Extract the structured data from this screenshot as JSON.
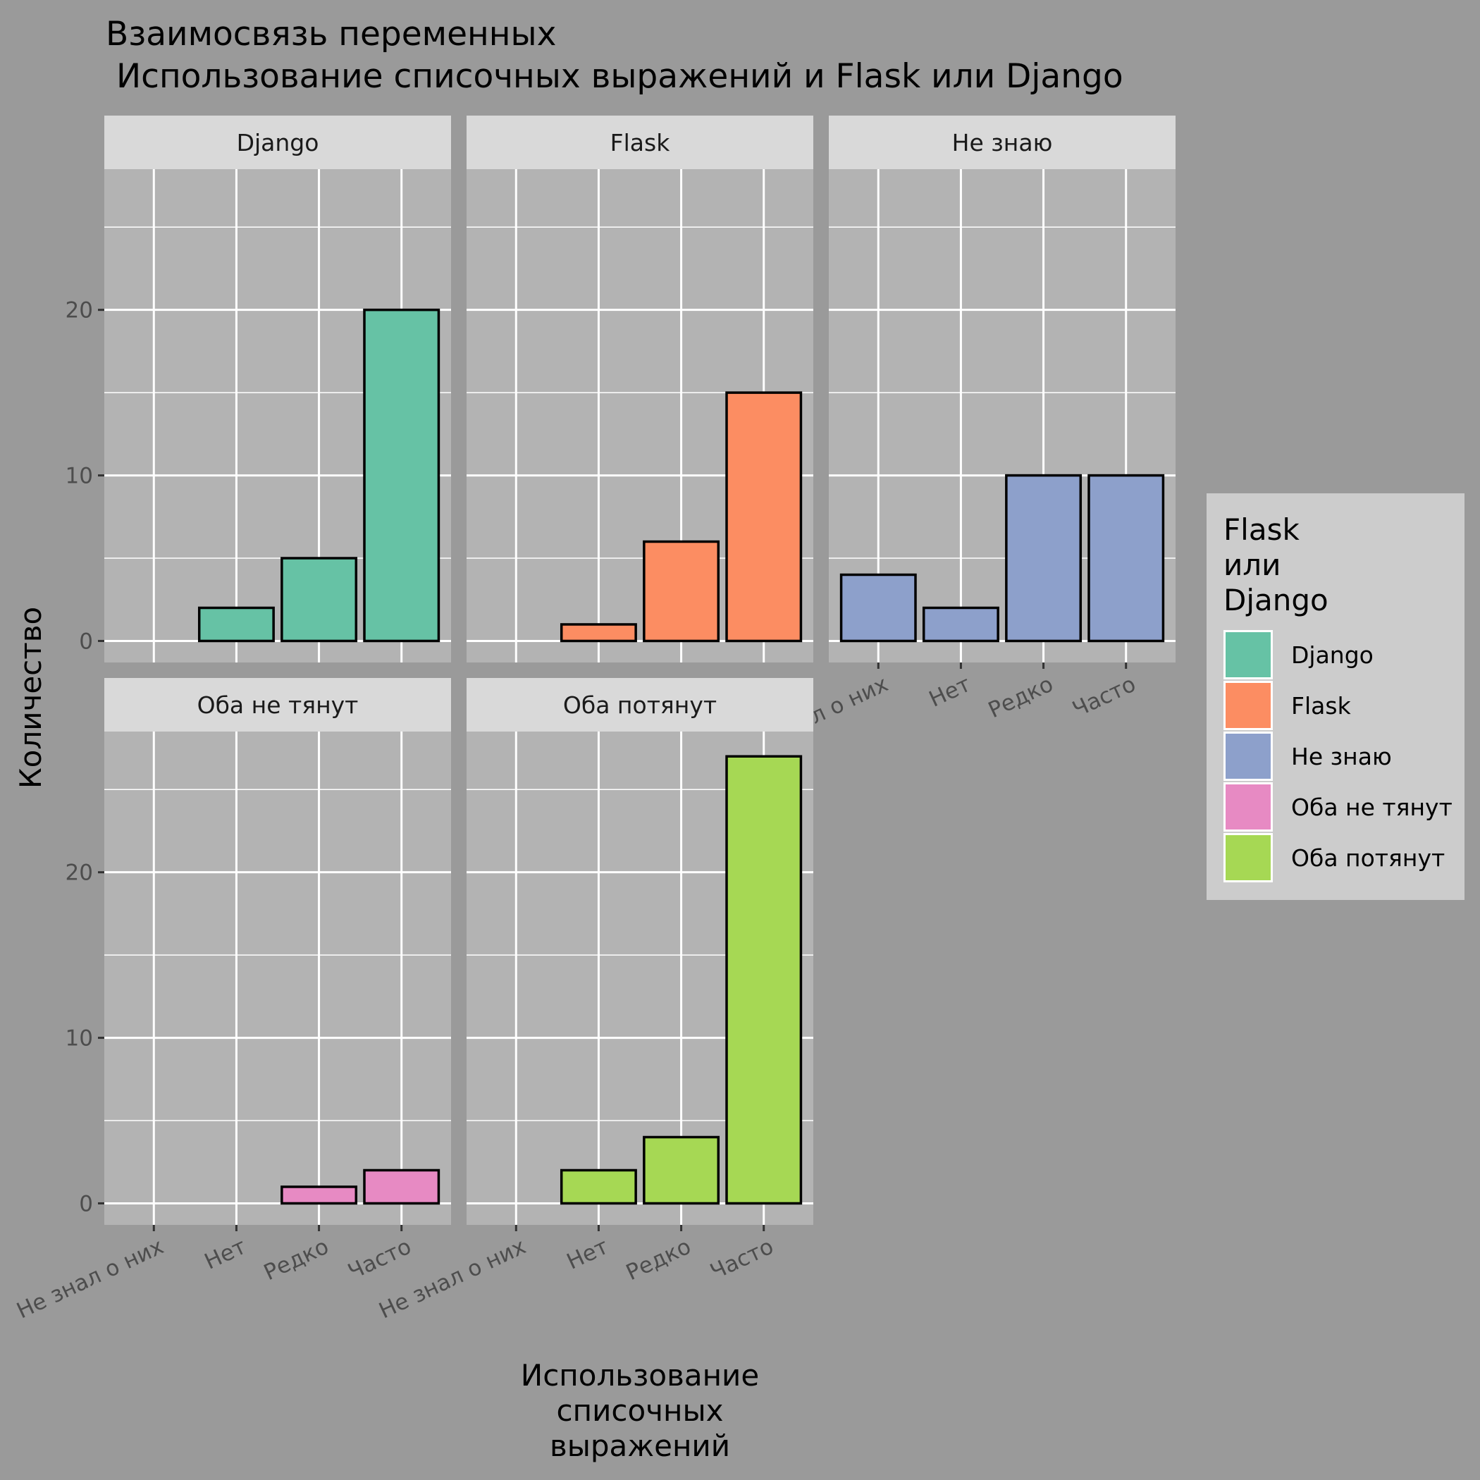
{
  "chart_data": {
    "type": "bar",
    "title_lines": [
      "Взаимосвязь переменных",
      " Использование списочных выражений и Flask или Django"
    ],
    "xlabel_lines": [
      "Использование",
      "списочных",
      "выражений"
    ],
    "ylabel": "Количество",
    "categories": [
      "Не знал о них",
      "Нет",
      "Редко",
      "Часто"
    ],
    "yticks": [
      0,
      10,
      20
    ],
    "ylim": [
      -1.3,
      28.5
    ],
    "grid": true,
    "legend_position": "right",
    "legend": {
      "title_lines": [
        "Flask",
        "или",
        "Django"
      ],
      "entries": [
        "Django",
        "Flask",
        "Не знаю",
        "Оба не тянут",
        "Оба потянут"
      ]
    },
    "panels": [
      {
        "name": "Django",
        "color": "#66c2a5",
        "values": [
          0,
          2,
          5,
          20
        ]
      },
      {
        "name": "Flask",
        "color": "#fc8d62",
        "values": [
          0,
          1,
          6,
          15
        ]
      },
      {
        "name": "Не знаю",
        "color": "#8da0cb",
        "values": [
          4,
          2,
          10,
          10
        ]
      },
      {
        "name": "Оба не тянут",
        "color": "#e78ac3",
        "values": [
          0,
          0,
          1,
          2
        ]
      },
      {
        "name": "Оба потянут",
        "color": "#a6d854",
        "values": [
          0,
          2,
          4,
          27
        ]
      }
    ]
  }
}
